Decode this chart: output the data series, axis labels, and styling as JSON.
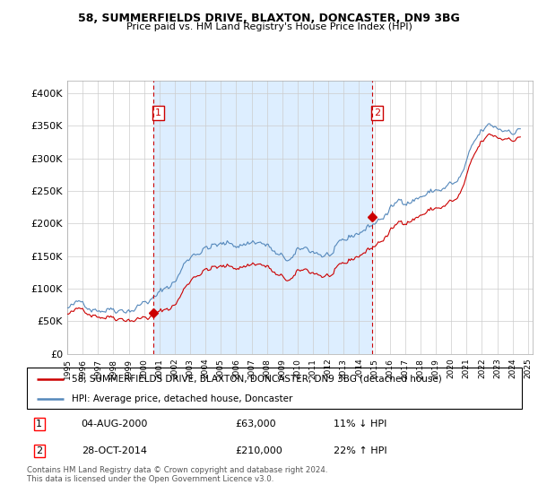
{
  "title1": "58, SUMMERFIELDS DRIVE, BLAXTON, DONCASTER, DN9 3BG",
  "title2": "Price paid vs. HM Land Registry's House Price Index (HPI)",
  "ylabel_ticks": [
    "£0",
    "£50K",
    "£100K",
    "£150K",
    "£200K",
    "£250K",
    "£300K",
    "£350K",
    "£400K"
  ],
  "ylabel_values": [
    0,
    50000,
    100000,
    150000,
    200000,
    250000,
    300000,
    350000,
    400000
  ],
  "ylim": [
    0,
    420000
  ],
  "xlim_start": 1995.0,
  "xlim_end": 2025.3,
  "hpi_color": "#5588bb",
  "price_color": "#cc0000",
  "vline_color": "#cc0000",
  "shade_color": "#ddeeff",
  "grid_color": "#cccccc",
  "background_color": "#ffffff",
  "marker1_x": 2000.58,
  "marker1_y": 63000,
  "marker2_x": 2014.83,
  "marker2_y": 210000,
  "label1_date": "04-AUG-2000",
  "label1_price": "£63,000",
  "label1_hpi": "11% ↓ HPI",
  "label2_date": "28-OCT-2014",
  "label2_price": "£210,000",
  "label2_hpi": "22% ↑ HPI",
  "legend_line1": "58, SUMMERFIELDS DRIVE, BLAXTON, DONCASTER, DN9 3BG (detached house)",
  "legend_line2": "HPI: Average price, detached house, Doncaster",
  "footnote": "Contains HM Land Registry data © Crown copyright and database right 2024.\nThis data is licensed under the Open Government Licence v3.0."
}
